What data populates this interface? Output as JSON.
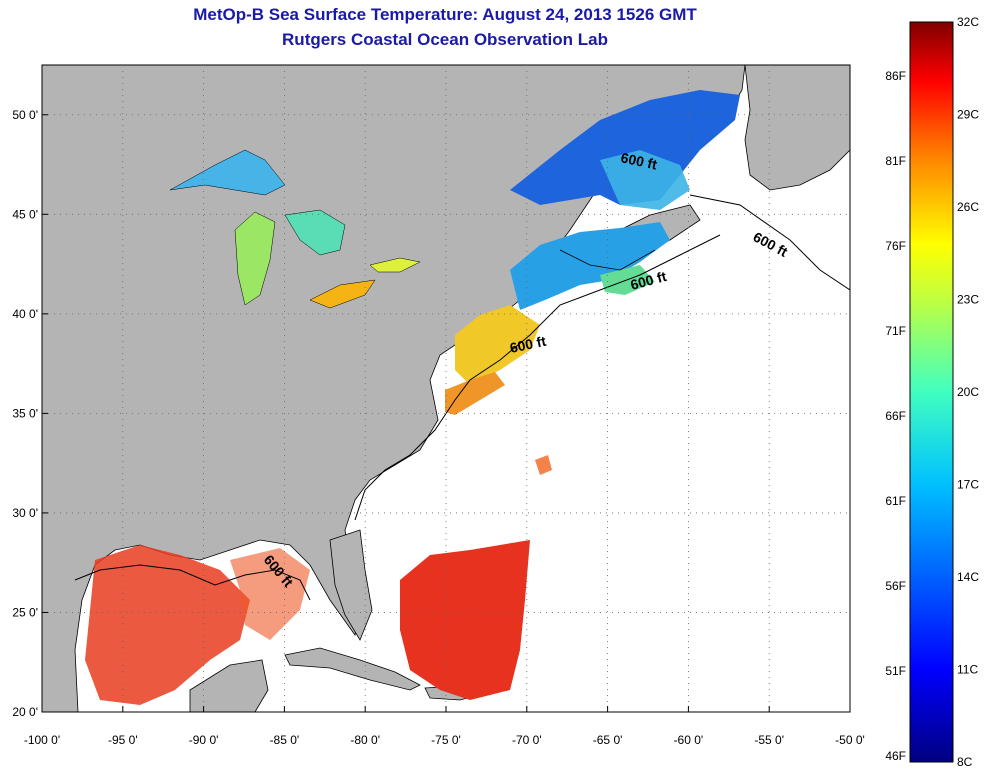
{
  "title": {
    "line1": "MetOp-B Sea Surface Temperature:  August 24, 2013 1526 GMT",
    "line2": "Rutgers Coastal Ocean Observation Lab"
  },
  "axes": {
    "longitude_ticks": [
      "-100 0'",
      "-95 0'",
      "-90 0'",
      "-85 0'",
      "-80 0'",
      "-75 0'",
      "-70 0'",
      "-65 0'",
      "-60 0'",
      "-55 0'",
      "-50 0'"
    ],
    "latitude_ticks": [
      "50 0'",
      "45 0'",
      "40 0'",
      "35 0'",
      "30 0'",
      "25 0'",
      "20 0'"
    ],
    "lon_range": [
      -100,
      -50
    ],
    "lat_range": [
      20,
      52.5
    ]
  },
  "contours": [
    {
      "label": "600 ft"
    },
    {
      "label": "600 ft"
    },
    {
      "label": "600 ft"
    },
    {
      "label": "600 ft"
    },
    {
      "label": "600 ft"
    }
  ],
  "colorbar": {
    "celsius_labels": [
      "32C",
      "29C",
      "26C",
      "23C",
      "20C",
      "17C",
      "14C",
      "11C",
      "8C"
    ],
    "fahrenheit_labels": [
      "86F",
      "81F",
      "76F",
      "71F",
      "66F",
      "61F",
      "56F",
      "51F",
      "46F"
    ],
    "range_celsius": [
      8,
      32
    ],
    "colors": [
      "#800000",
      "#ff0000",
      "#ff8000",
      "#ffff00",
      "#80ff80",
      "#00ffff",
      "#0080ff",
      "#0000ff",
      "#000080"
    ]
  },
  "colors": {
    "land": "#b4b4b4",
    "no_data": "#ffffff",
    "title": "#1a1aa8"
  }
}
